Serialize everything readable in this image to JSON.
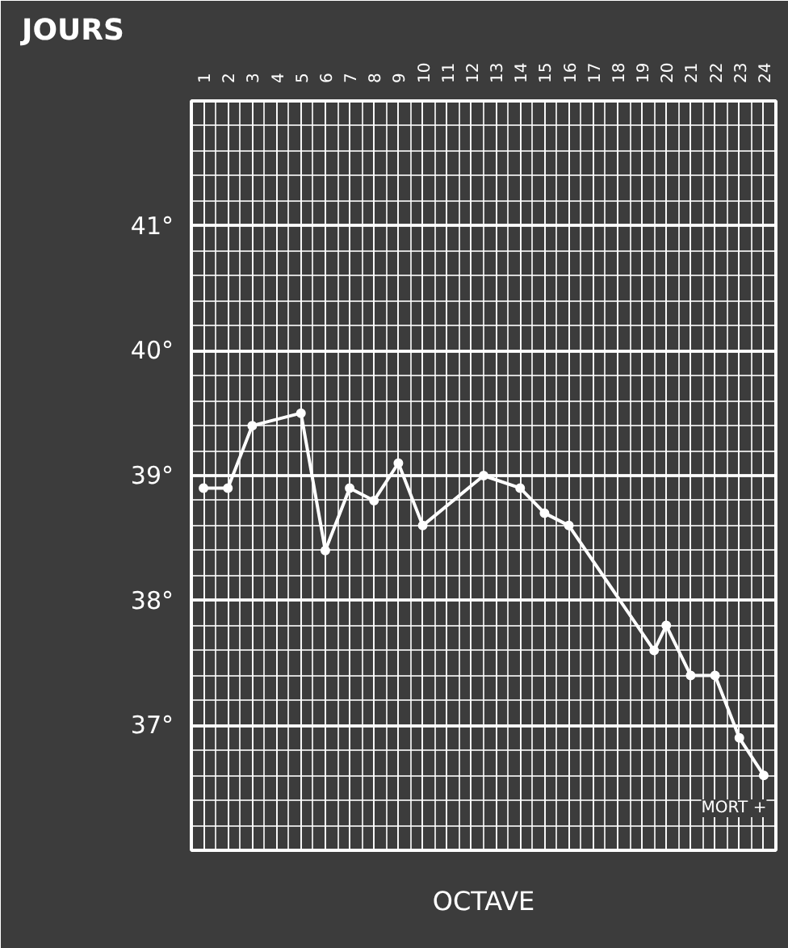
{
  "chart_data": {
    "type": "line",
    "xlabel": "JOURS",
    "x": [
      1.0,
      2.0,
      3.0,
      5.0,
      6.0,
      7.0,
      8.0,
      9.0,
      10.0,
      12.5,
      14.0,
      15.0,
      16.0,
      19.5,
      20.0,
      21.0,
      22.0,
      23.0,
      24.0
    ],
    "series": [
      {
        "color": "#ffffff",
        "values": [
          38.9,
          38.9,
          39.4,
          39.5,
          38.4,
          38.9,
          38.8,
          39.1,
          38.6,
          39.0,
          38.9,
          38.7,
          38.6,
          37.6,
          37.8,
          37.4,
          37.4,
          36.9,
          36.6
        ]
      }
    ],
    "xlim": [
      0.5,
      24.5
    ],
    "ylim": [
      36,
      42
    ],
    "xticks": [
      1,
      2,
      3,
      4,
      5,
      6,
      7,
      8,
      9,
      10,
      11,
      12,
      13,
      14,
      15,
      16,
      17,
      18,
      19,
      20,
      21,
      22,
      23,
      24
    ],
    "yticks": [
      {
        "value": 37,
        "label": "37°"
      },
      {
        "value": 38,
        "label": "38°"
      },
      {
        "value": 39,
        "label": "39°"
      },
      {
        "value": 40,
        "label": "40°"
      },
      {
        "value": 41,
        "label": "41°"
      }
    ],
    "grid": true,
    "marker": "circle",
    "line_style": "solid",
    "annotations": [
      "MORT +",
      "OCTAVE"
    ]
  }
}
